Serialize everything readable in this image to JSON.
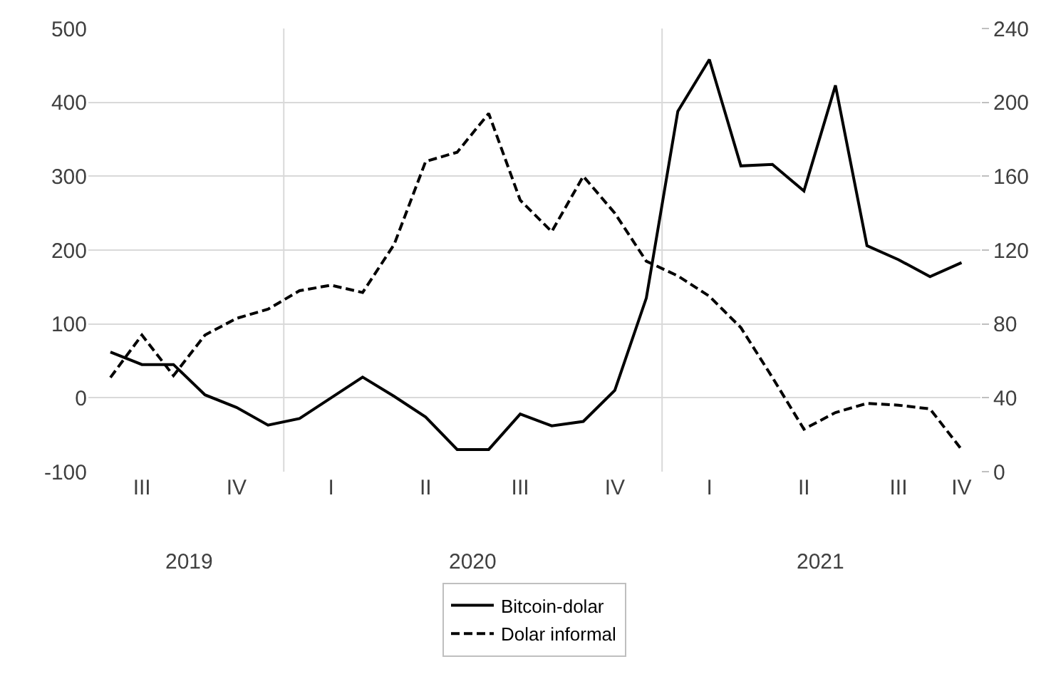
{
  "chart_data": {
    "type": "line",
    "categories": [
      null,
      "III",
      null,
      null,
      "IV",
      null,
      null,
      "I",
      null,
      null,
      "II",
      null,
      null,
      "III",
      null,
      null,
      "IV",
      null,
      null,
      "I",
      null,
      null,
      "II",
      null,
      null,
      "III",
      null,
      "IV"
    ],
    "series": [
      {
        "name": "Bitcoin-dolar",
        "color": "#000000",
        "line_style": "solid",
        "values": [
          62,
          45,
          45,
          4,
          -13,
          -37,
          -28,
          0,
          28,
          2,
          -26,
          -70,
          -70,
          -22,
          -38,
          -32,
          10,
          135,
          388,
          458,
          314,
          316,
          280,
          423,
          206,
          187,
          164,
          183
        ]
      },
      {
        "name": "Dolar informal",
        "color": "#000000",
        "line_style": "dashed",
        "axis": "y2",
        "values": [
          51,
          74,
          52,
          74,
          83,
          88,
          98,
          101,
          97,
          123,
          168,
          173,
          194,
          147,
          130,
          160,
          140,
          114,
          106,
          95,
          78,
          51,
          23,
          32,
          37,
          36,
          34,
          12
        ]
      }
    ],
    "ylim": [
      -100,
      500
    ],
    "yticks": [
      -100,
      0,
      100,
      200,
      300,
      400,
      500
    ],
    "y2lim": [
      0,
      240
    ],
    "y2ticks": [
      0,
      40,
      80,
      120,
      160,
      200,
      240
    ],
    "annotations": [
      "2019",
      "2020",
      "2021"
    ],
    "grid": "y",
    "legend": "bottom",
    "marker": "none"
  }
}
